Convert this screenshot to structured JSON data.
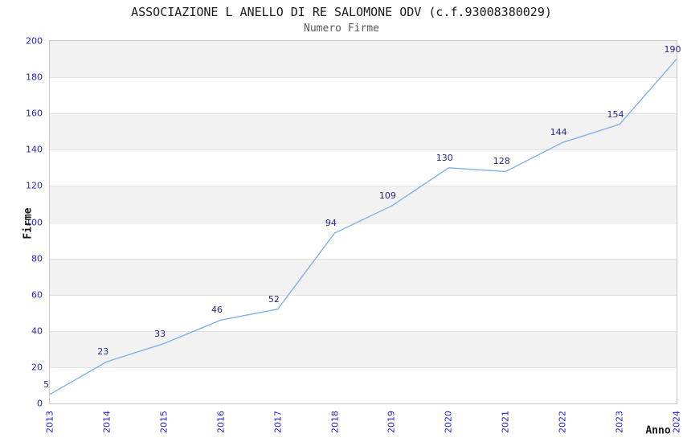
{
  "chart_data": {
    "type": "line",
    "title": "ASSOCIAZIONE L ANELLO DI RE SALOMONE ODV (c.f.93008380029)",
    "subtitle": "Numero Firme",
    "xlabel": "Anno",
    "ylabel": "Firme",
    "x": [
      2013,
      2014,
      2015,
      2016,
      2017,
      2018,
      2019,
      2020,
      2021,
      2022,
      2023,
      2024
    ],
    "series": [
      {
        "name": "Numero Firme",
        "values": [
          5,
          23,
          33,
          46,
          52,
          94,
          109,
          130,
          128,
          144,
          154,
          190
        ]
      }
    ],
    "data_labels": [
      "5",
      "23",
      "33",
      "46",
      "52",
      "94",
      "109",
      "130",
      "128",
      "144",
      "154",
      "190"
    ],
    "ylim": [
      0,
      200
    ],
    "y_ticks": [
      0,
      20,
      40,
      60,
      80,
      100,
      120,
      140,
      160,
      180,
      200
    ],
    "grid": "horizontal striped bands every 20 units",
    "legend": "none",
    "colors": {
      "line": "#7fb2e8",
      "tick_label": "#2222cc",
      "data_label": "#26268f",
      "band": "#f2f2f2",
      "plot_border": "#c9c9c9",
      "gridline": "#e2e2e2",
      "title": "#1a1a1a",
      "subtitle": "#595959",
      "axis_title": "#1a1a1a"
    }
  }
}
